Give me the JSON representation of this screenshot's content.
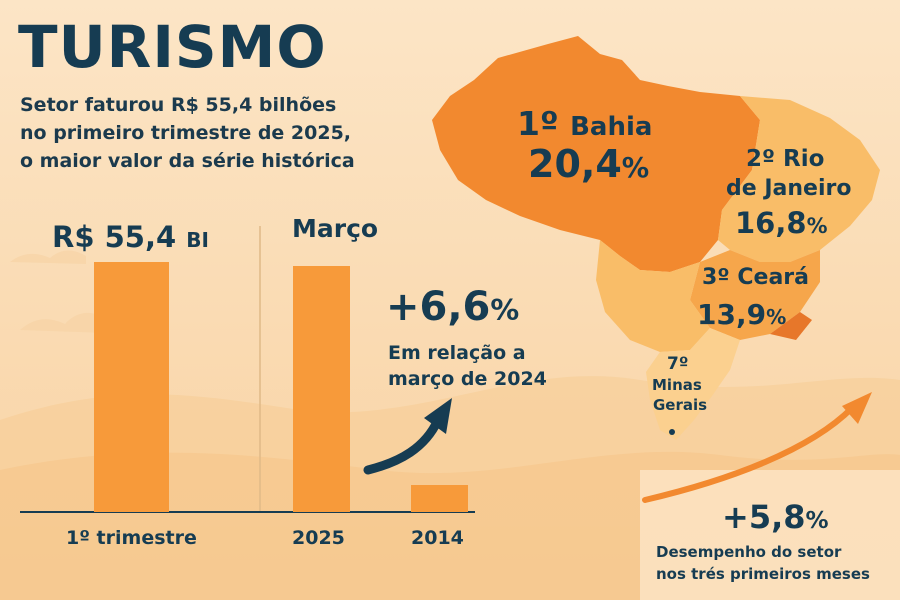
{
  "header": {
    "title": "TURISMO",
    "subtitle_lines": [
      "Setor faturou R$ 55,4 bilhões",
      "no primeiro trimestre de 2025,",
      "o maior valor da série histórica"
    ]
  },
  "chart_data": [
    {
      "type": "bar",
      "title": "1º trimestre",
      "categories": [
        "1º trimestre"
      ],
      "values": [
        55.4
      ],
      "value_label": "R$ 55,4",
      "value_unit": "BI"
    },
    {
      "type": "bar",
      "title": "Março",
      "categories": [
        "2025",
        "2014"
      ],
      "values": [
        100,
        11
      ],
      "note": "relative bar heights estimated from image"
    }
  ],
  "growth": {
    "value": "+6,6",
    "unit": "%",
    "note_lines": [
      "Em relação a",
      "março de 2024"
    ]
  },
  "states": [
    {
      "rank": "1º",
      "name": "Bahia",
      "share": "20,4",
      "unit": "%"
    },
    {
      "rank": "2º",
      "name_lines": [
        "Rio",
        "de Janeiro"
      ],
      "share": "16,8",
      "unit": "%"
    },
    {
      "rank": "3º",
      "name": "Ceará",
      "share": "13,9",
      "unit": "%"
    },
    {
      "rank": "7º",
      "name_lines": [
        "Minas",
        "Gerais"
      ]
    }
  ],
  "performance": {
    "value": "+5,8",
    "unit": "%",
    "note_lines": [
      "Desempenho do setor",
      "nos trés primeiros meses"
    ]
  },
  "colors": {
    "background": "#fbe3c3",
    "bar": "#f79a3a",
    "text": "#163c52",
    "map_dark": "#f2892f",
    "map_mid": "#f6a64b",
    "map_light": "#f9bd68"
  }
}
